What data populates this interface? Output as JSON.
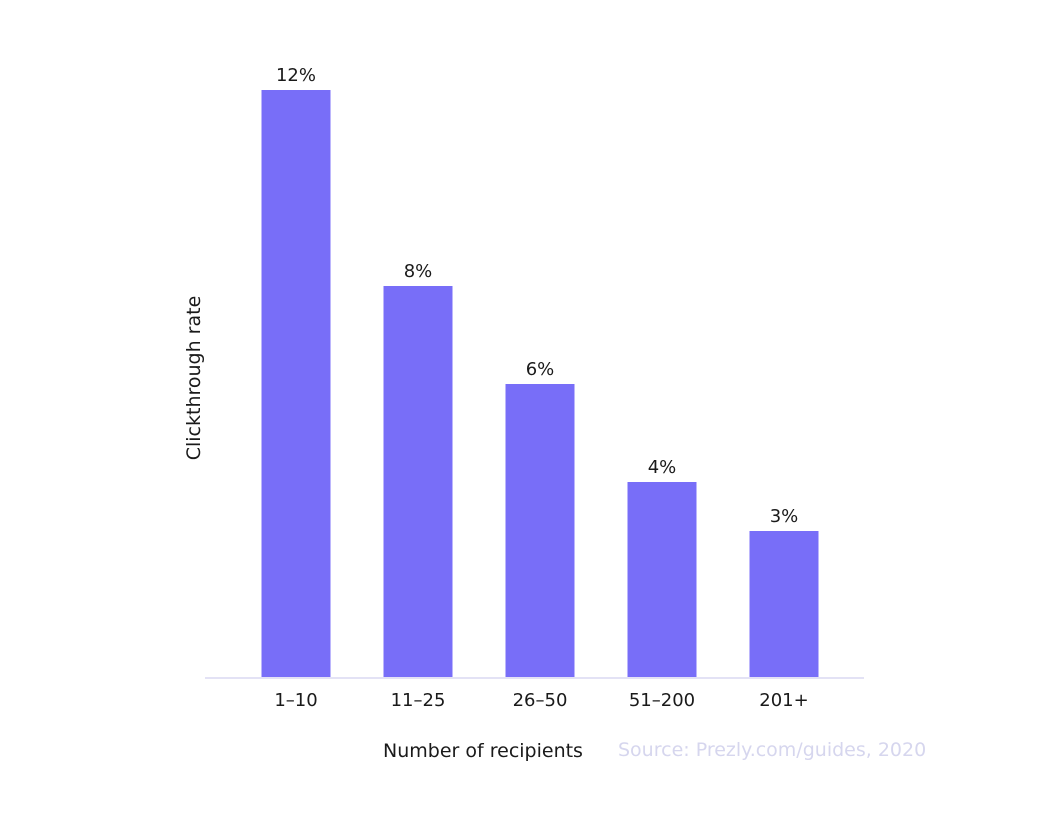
{
  "chart_data": {
    "type": "bar",
    "categories": [
      "1–10",
      "11–25",
      "26–50",
      "51–200",
      "201+"
    ],
    "values": [
      12,
      8,
      6,
      4,
      3
    ],
    "value_labels": [
      "12%",
      "8%",
      "6%",
      "4%",
      "3%"
    ],
    "title": "",
    "xlabel": "Number of recipients",
    "ylabel": "Clickthrough rate",
    "ylim": [
      0,
      12
    ],
    "grid": false,
    "source": "Source: Prezly.com/guides, 2020",
    "colors": {
      "bar": "#786ef8",
      "axis": "#e3e2f5",
      "text": "#1a1a1a",
      "source": "#d6d6ee"
    }
  }
}
